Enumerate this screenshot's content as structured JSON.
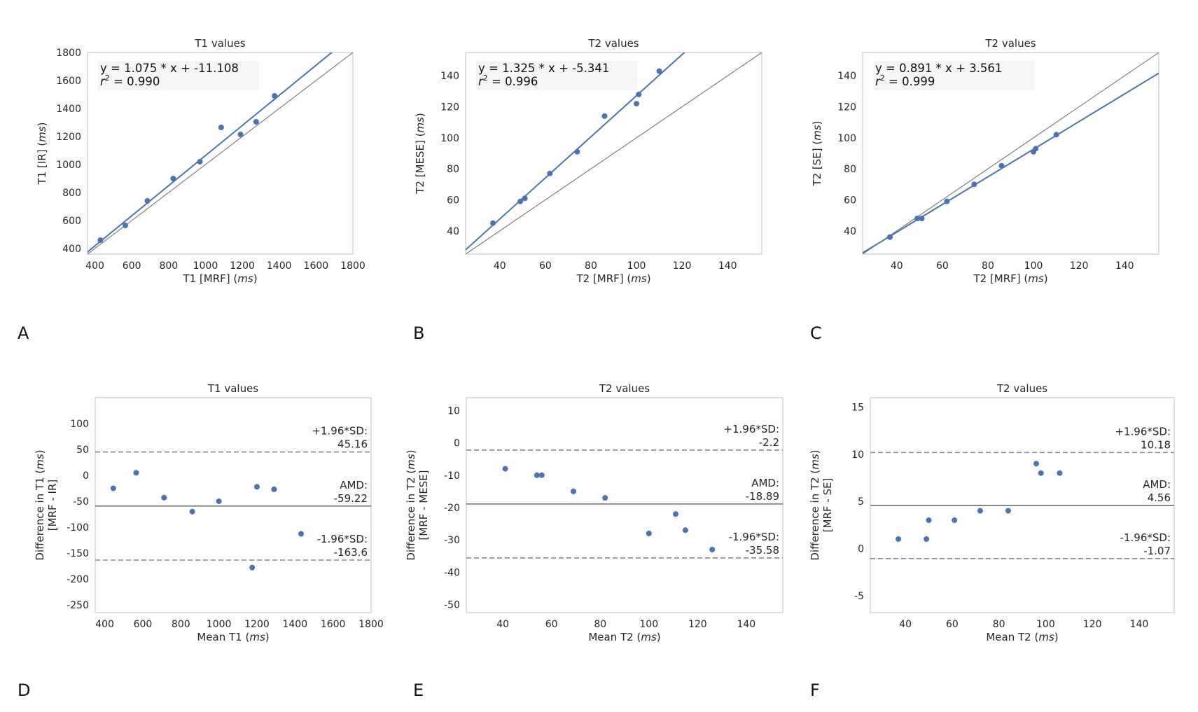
{
  "figure": {
    "panel_letters": [
      "A",
      "B",
      "C",
      "D",
      "E",
      "F"
    ]
  },
  "chart_data": [
    {
      "id": "A",
      "type": "scatter",
      "title": "T1 values",
      "xlabel": [
        "T1 [MRF] (",
        "ms",
        ")"
      ],
      "ylabel": [
        "T1 [IR] (",
        "ms",
        ")"
      ],
      "xlim": [
        360,
        1800
      ],
      "ylim": [
        360,
        1800
      ],
      "xticks": [
        400,
        600,
        800,
        1000,
        1200,
        1400,
        1600,
        1800
      ],
      "yticks": [
        400,
        600,
        800,
        1000,
        1200,
        1400,
        1600,
        1800
      ],
      "x": [
        430,
        565,
        685,
        825,
        970,
        1085,
        1190,
        1275,
        1375
      ],
      "y": [
        460,
        565,
        740,
        900,
        1020,
        1265,
        1215,
        1305,
        1490
      ],
      "fit": {
        "slope": 1.075,
        "intercept": -11.108
      },
      "identity_line": true,
      "annotation": {
        "eq": "y = 1.075 * x + -11.108",
        "r2_prefix": "r",
        "r2_sup": "2",
        "r2_value": " = 0.990"
      }
    },
    {
      "id": "B",
      "type": "scatter",
      "title": "T2 values",
      "xlabel": [
        "T2 [MRF] (",
        "ms",
        ")"
      ],
      "ylabel": [
        "T2 [MESE] (",
        "ms",
        ")"
      ],
      "xlim": [
        25,
        155
      ],
      "ylim": [
        25,
        155
      ],
      "xticks": [
        40,
        60,
        80,
        100,
        120,
        140
      ],
      "yticks": [
        40,
        60,
        80,
        100,
        120,
        140
      ],
      "x": [
        37,
        49,
        51,
        62,
        74,
        86,
        100,
        101,
        110
      ],
      "y": [
        45,
        59,
        61,
        77,
        91,
        114,
        122,
        128,
        143
      ],
      "fit": {
        "slope": 1.325,
        "intercept": -5.341
      },
      "identity_line": true,
      "annotation": {
        "eq": "y = 1.325 * x + -5.341",
        "r2_prefix": "r",
        "r2_sup": "2",
        "r2_value": " = 0.996"
      }
    },
    {
      "id": "C",
      "type": "scatter",
      "title": "T2 values",
      "xlabel": [
        "T2 [MRF] (",
        "ms",
        ")"
      ],
      "ylabel": [
        "T2 [SE] (",
        "ms",
        ")"
      ],
      "xlim": [
        25,
        155
      ],
      "ylim": [
        25,
        155
      ],
      "xticks": [
        40,
        60,
        80,
        100,
        120,
        140
      ],
      "yticks": [
        40,
        60,
        80,
        100,
        120,
        140
      ],
      "x": [
        37,
        49,
        51,
        62,
        74,
        86,
        100,
        101,
        110
      ],
      "y": [
        36,
        48,
        48,
        59,
        70,
        82,
        91,
        93,
        102
      ],
      "fit": {
        "slope": 0.891,
        "intercept": 3.561
      },
      "identity_line": true,
      "annotation": {
        "eq": "y = 0.891 * x + 3.561",
        "r2_prefix": "r",
        "r2_sup": "2",
        "r2_value": " = 0.999"
      }
    },
    {
      "id": "D",
      "type": "scatter",
      "title": "T1 values",
      "xlabel": [
        "Mean T1 (",
        "ms",
        ")"
      ],
      "ylabel": [
        "Difference in T1 (",
        "ms",
        ")"
      ],
      "ylabel2": "[MRF - IR]",
      "xlim": [
        350,
        1800
      ],
      "ylim": [
        -265,
        150
      ],
      "xticks": [
        400,
        600,
        800,
        1000,
        1200,
        1400,
        1600,
        1800
      ],
      "yticks": [
        -250,
        -200,
        -150,
        -100,
        -50,
        0,
        50,
        100
      ],
      "x": [
        445,
        565,
        712,
        860,
        1000,
        1175,
        1200,
        1290,
        1432
      ],
      "y": [
        -25,
        5,
        -43,
        -70,
        -50,
        -178,
        -22,
        -27,
        -113
      ],
      "amd": -59.22,
      "upper": 45.16,
      "lower": -163.6,
      "labels": {
        "upper_title": "+1.96*SD:",
        "upper_value": "45.16",
        "amd_title": "AMD:",
        "amd_value": "-59.22",
        "lower_title": "-1.96*SD:",
        "lower_value": "-163.6"
      }
    },
    {
      "id": "E",
      "type": "scatter",
      "title": "T2 values",
      "xlabel": [
        "Mean T2 (",
        "ms",
        ")"
      ],
      "ylabel": [
        "Difference in T2 (",
        "ms",
        ")"
      ],
      "ylabel2": "[MRF - MESE]",
      "xlim": [
        25,
        155
      ],
      "ylim": [
        -52.5,
        14
      ],
      "xticks": [
        40,
        60,
        80,
        100,
        120,
        140
      ],
      "yticks": [
        -50,
        -40,
        -30,
        -20,
        -10,
        0,
        10
      ],
      "x": [
        41,
        54,
        56,
        69,
        82,
        100,
        111,
        115,
        126
      ],
      "y": [
        -8,
        -10,
        -10,
        -15,
        -17,
        -28,
        -22,
        -27,
        -33
      ],
      "amd": -18.89,
      "upper": -2.2,
      "lower": -35.58,
      "labels": {
        "upper_title": "+1.96*SD:",
        "upper_value": "-2.2",
        "amd_title": "AMD:",
        "amd_value": "-18.89",
        "lower_title": "-1.96*SD:",
        "lower_value": "-35.58"
      }
    },
    {
      "id": "F",
      "type": "scatter",
      "title": "T2 values",
      "xlabel": [
        "Mean T2 (",
        "ms",
        ")"
      ],
      "ylabel": [
        "Difference in T2 (",
        "ms",
        ")"
      ],
      "ylabel2": "[MRF - SE]",
      "xlim": [
        25,
        155
      ],
      "ylim": [
        -6.8,
        16
      ],
      "xticks": [
        40,
        60,
        80,
        100,
        120,
        140
      ],
      "yticks": [
        -5,
        0,
        5,
        10,
        15
      ],
      "x": [
        37,
        49,
        50,
        61,
        72,
        84,
        96,
        98,
        106
      ],
      "y": [
        1,
        1,
        3,
        3,
        4,
        4,
        9,
        8,
        8
      ],
      "amd": 4.56,
      "upper": 10.18,
      "lower": -1.07,
      "labels": {
        "upper_title": "+1.96*SD:",
        "upper_value": "10.18",
        "amd_title": "AMD:",
        "amd_value": "4.56",
        "lower_title": "-1.96*SD:",
        "lower_value": "-1.07"
      }
    }
  ]
}
